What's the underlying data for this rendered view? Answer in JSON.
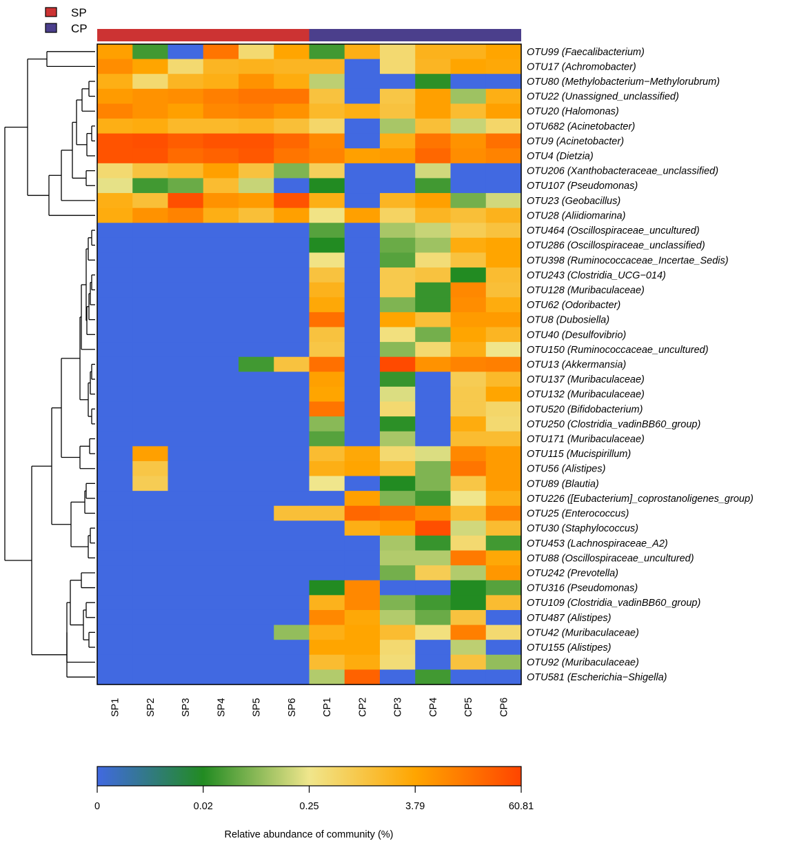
{
  "chart_data": {
    "type": "heatmap",
    "title": "",
    "columns": [
      "SP1",
      "SP2",
      "SP3",
      "SP4",
      "SP5",
      "SP6",
      "CP1",
      "CP2",
      "CP3",
      "CP4",
      "CP5",
      "CP6"
    ],
    "column_groups": [
      {
        "name": "SP",
        "color": "#cc3333",
        "members": [
          "SP1",
          "SP2",
          "SP3",
          "SP4",
          "SP5",
          "SP6"
        ]
      },
      {
        "name": "CP",
        "color": "#4b3f8c",
        "members": [
          "CP1",
          "CP2",
          "CP3",
          "CP4",
          "CP5",
          "CP6"
        ]
      }
    ],
    "rows": [
      "OTU99 (Faecalibacterium)",
      "OTU17 (Achromobacter)",
      "OTU80 (Methylobacterium−Methylorubrum)",
      "OTU22 (Unassigned_unclassified)",
      "OTU20 (Halomonas)",
      "OTU682 (Acinetobacter)",
      "OTU9 (Acinetobacter)",
      "OTU4 (Dietzia)",
      "OTU206 (Xanthobacteraceae_unclassified)",
      "OTU107 (Pseudomonas)",
      "OTU23 (Geobacillus)",
      "OTU28 (Aliidiomarina)",
      "OTU464 (Oscillospiraceae_uncultured)",
      "OTU286 (Oscillospiraceae_unclassified)",
      "OTU398 (Ruminococcaceae_Incertae_Sedis)",
      "OTU243 (Clostridia_UCG−014)",
      "OTU128 (Muribaculaceae)",
      "OTU62 (Odoribacter)",
      "OTU8 (Dubosiella)",
      "OTU40 (Desulfovibrio)",
      "OTU150 (Ruminococcaceae_uncultured)",
      "OTU13 (Akkermansia)",
      "OTU137 (Muribaculaceae)",
      "OTU132 (Muribaculaceae)",
      "OTU520 (Bifidobacterium)",
      "OTU250 (Clostridia_vadinBB60_group)",
      "OTU171 (Muribaculaceae)",
      "OTU115 (Mucispirillum)",
      "OTU56 (Alistipes)",
      "OTU89 (Blautia)",
      "OTU226 ([Eubacterium]_coprostanoligenes_group)",
      "OTU25 (Enterococcus)",
      "OTU30 (Staphylococcus)",
      "OTU453 (Lachnospiraceae_A2)",
      "OTU88 (Oscillospiraceae_uncultured)",
      "OTU242 (Prevotella)",
      "OTU316 (Pseudomonas)",
      "OTU109 (Clostridia_vadinBB60_group)",
      "OTU487 (Alistipes)",
      "OTU42 (Muribaculaceae)",
      "OTU155 (Alistipes)",
      "OTU92 (Muribaculaceae)",
      "OTU581 (Escherichia−Shigella)"
    ],
    "value_scale_note": "values are positions on the color scale: 0 = 0%, 1 = 0.02%, 2 = 0.25%, 3 = 3.79%, 4 = 60.81% (estimated from cell colors)",
    "values": [
      [
        3.05,
        1.15,
        0,
        3.5,
        2.2,
        3.0,
        1.15,
        2.85,
        2.2,
        2.8,
        2.8,
        3.0
      ],
      [
        3.25,
        3.0,
        2.2,
        2.75,
        2.8,
        2.75,
        2.75,
        0,
        2.2,
        2.75,
        3.0,
        2.95
      ],
      [
        2.85,
        2.2,
        2.75,
        2.85,
        3.2,
        2.9,
        1.75,
        0,
        0,
        1.05,
        0,
        0
      ],
      [
        3.1,
        3.2,
        3.25,
        3.4,
        3.5,
        3.5,
        2.55,
        0,
        2.5,
        3.05,
        1.6,
        2.85
      ],
      [
        3.35,
        3.2,
        3.05,
        3.3,
        3.35,
        3.2,
        2.7,
        2.85,
        2.55,
        3.05,
        2.65,
        3.05
      ],
      [
        2.85,
        2.9,
        2.7,
        2.7,
        2.75,
        2.6,
        2.25,
        0,
        1.65,
        2.6,
        1.8,
        2.25
      ],
      [
        3.85,
        3.9,
        3.75,
        3.85,
        3.85,
        3.65,
        3.3,
        0,
        2.85,
        3.5,
        3.2,
        3.55
      ],
      [
        3.85,
        3.85,
        3.6,
        3.7,
        3.8,
        3.5,
        3.35,
        3.05,
        3.1,
        3.65,
        3.25,
        3.35
      ],
      [
        2.2,
        2.55,
        2.7,
        3.05,
        2.55,
        1.45,
        2.35,
        0,
        0,
        1.85,
        0,
        0
      ],
      [
        1.95,
        1.15,
        1.35,
        2.65,
        1.8,
        0,
        1.0,
        0,
        0,
        1.15,
        0,
        0
      ],
      [
        2.85,
        2.6,
        3.9,
        3.2,
        3.1,
        3.85,
        2.85,
        0,
        2.75,
        3.05,
        1.4,
        1.85
      ],
      [
        2.9,
        3.2,
        3.35,
        2.85,
        2.6,
        3.05,
        2.05,
        3.05,
        2.3,
        2.75,
        2.6,
        2.8
      ],
      [
        0,
        0,
        0,
        0,
        0,
        0,
        1.25,
        0,
        1.65,
        1.8,
        2.4,
        2.55
      ],
      [
        0,
        0,
        0,
        0,
        0,
        0,
        1.0,
        0,
        1.35,
        1.6,
        2.9,
        3.0
      ],
      [
        0,
        0,
        0,
        0,
        0,
        0,
        2.05,
        0,
        1.25,
        2.15,
        2.55,
        3.0
      ],
      [
        0,
        0,
        0,
        0,
        0,
        0,
        2.55,
        0,
        2.45,
        2.55,
        1.0,
        2.65
      ],
      [
        0,
        0,
        0,
        0,
        0,
        0,
        2.8,
        0,
        2.45,
        1.1,
        3.3,
        2.6
      ],
      [
        0,
        0,
        0,
        0,
        0,
        0,
        2.95,
        0,
        1.45,
        1.1,
        3.25,
        2.9
      ],
      [
        0,
        0,
        0,
        0,
        0,
        0,
        3.55,
        0,
        3.0,
        2.6,
        3.1,
        3.1
      ],
      [
        0,
        0,
        0,
        0,
        0,
        0,
        2.55,
        0,
        2.1,
        1.4,
        3.0,
        2.75
      ],
      [
        0,
        0,
        0,
        0,
        0,
        0,
        2.5,
        0,
        1.5,
        2.2,
        2.85,
        2.0
      ],
      [
        0,
        0,
        0,
        0,
        1.15,
        2.55,
        3.55,
        0,
        3.95,
        3.2,
        3.35,
        3.4
      ],
      [
        0,
        0,
        0,
        0,
        0,
        0,
        3.05,
        0,
        1.1,
        0,
        2.4,
        2.7
      ],
      [
        0,
        0,
        0,
        0,
        0,
        0,
        3.0,
        0,
        1.9,
        0,
        2.45,
        3.0
      ],
      [
        0,
        0,
        0,
        0,
        0,
        0,
        3.5,
        0,
        2.2,
        0,
        2.45,
        2.25
      ],
      [
        0,
        0,
        0,
        0,
        0,
        0,
        1.5,
        0,
        1.05,
        0,
        2.9,
        2.2
      ],
      [
        0,
        0,
        0,
        0,
        0,
        0,
        1.25,
        0,
        1.65,
        0,
        2.65,
        2.65
      ],
      [
        0,
        3.05,
        0,
        0,
        0,
        0,
        2.65,
        2.95,
        2.2,
        1.9,
        3.3,
        3.1
      ],
      [
        0,
        2.5,
        0,
        0,
        0,
        0,
        2.85,
        3.0,
        2.6,
        1.45,
        3.5,
        3.1
      ],
      [
        0,
        2.4,
        0,
        0,
        0,
        0,
        2.0,
        0,
        1.0,
        1.45,
        2.5,
        3.1
      ],
      [
        0,
        0,
        0,
        0,
        0,
        0,
        0,
        3.05,
        1.45,
        1.15,
        2.0,
        2.85
      ],
      [
        0,
        0,
        0,
        0,
        0,
        2.6,
        2.6,
        3.65,
        3.55,
        3.25,
        2.65,
        3.35
      ],
      [
        0,
        0,
        0,
        0,
        0,
        0,
        0,
        2.85,
        3.05,
        3.9,
        1.85,
        2.65
      ],
      [
        0,
        0,
        0,
        0,
        0,
        0,
        0,
        0,
        1.65,
        1.1,
        2.2,
        1.15
      ],
      [
        0,
        0,
        0,
        0,
        0,
        0,
        0,
        0,
        1.7,
        1.7,
        3.45,
        2.95
      ],
      [
        0,
        0,
        0,
        0,
        0,
        0,
        0,
        0,
        1.4,
        2.4,
        1.7,
        3.15
      ],
      [
        0,
        0,
        0,
        0,
        0,
        0,
        1.0,
        3.3,
        0,
        0,
        1.0,
        1.25
      ],
      [
        0,
        0,
        0,
        0,
        0,
        0,
        2.8,
        3.3,
        1.45,
        1.15,
        1.0,
        2.65
      ],
      [
        0,
        0,
        0,
        0,
        0,
        0,
        3.3,
        2.95,
        1.7,
        1.35,
        2.55,
        0
      ],
      [
        0,
        0,
        0,
        0,
        0,
        1.55,
        2.85,
        3.0,
        2.65,
        2.1,
        3.4,
        2.2
      ],
      [
        0,
        0,
        0,
        0,
        0,
        0,
        3.0,
        3.0,
        2.2,
        0,
        1.75,
        0
      ],
      [
        0,
        0,
        0,
        0,
        0,
        0,
        2.65,
        2.9,
        2.15,
        0,
        2.55,
        1.55
      ],
      [
        0,
        0,
        0,
        0,
        0,
        0,
        1.7,
        3.7,
        0,
        1.15,
        0,
        0
      ]
    ],
    "colorbar": {
      "title": "Relative abundance of community (%)",
      "tick_labels": [
        "0",
        "0.02",
        "0.25",
        "3.79",
        "60.81"
      ],
      "colors": [
        "#4169e1",
        "#228b22",
        "#f0e68c",
        "#ffa500",
        "#ff4500"
      ]
    },
    "legend": {
      "placement": "top-left",
      "entries": [
        {
          "label": "SP",
          "color": "#cc3333"
        },
        {
          "label": "CP",
          "color": "#4b3f8c"
        }
      ]
    },
    "row_dendrogram": true,
    "column_dendrogram": false
  }
}
